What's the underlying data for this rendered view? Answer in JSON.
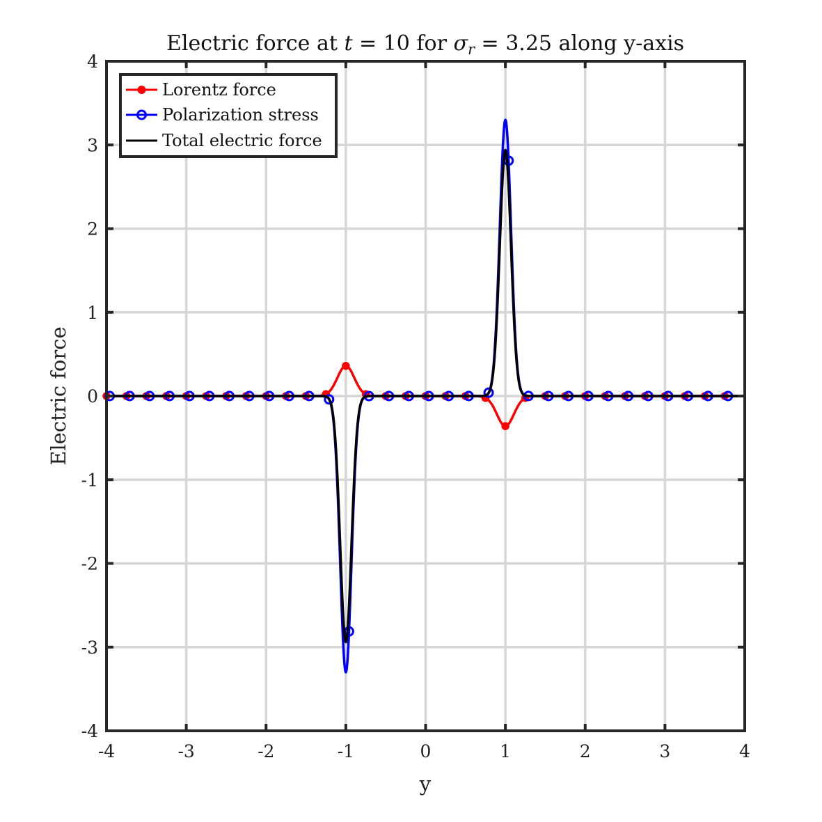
{
  "chart_data": {
    "type": "line",
    "title_parts": {
      "a": "Electric force at ",
      "t": "t",
      "eq1": " = 10 for ",
      "sigma": "σ",
      "sub": "r",
      "eq2": " = 3.25 along y-axis"
    },
    "xlabel": "y",
    "ylabel": "Electric force",
    "xlim": [
      -4,
      4
    ],
    "ylim": [
      -4,
      4
    ],
    "xticks": [
      "-4",
      "-3",
      "-2",
      "-1",
      "0",
      "1",
      "2",
      "3",
      "4"
    ],
    "yticks": [
      "-4",
      "-3",
      "-2",
      "-1",
      "0",
      "1",
      "2",
      "3",
      "4"
    ],
    "grid": true,
    "legend_position": "top-left",
    "series": [
      {
        "name": "Lorentz force",
        "color": "#ff0000",
        "marker": "filled-dot",
        "function": {
          "amp": 0.36,
          "center": 1.0,
          "width": 0.15,
          "sign": -1
        },
        "marker_x": [
          -4.0,
          -3.75,
          -3.5,
          -3.25,
          -3.0,
          -2.75,
          -2.5,
          -2.25,
          -2.0,
          -1.75,
          -1.5,
          -1.25,
          -1.0,
          -0.75,
          -0.5,
          -0.25,
          0.0,
          0.25,
          0.5,
          0.75,
          1.0,
          1.25,
          1.5,
          1.75,
          2.0,
          2.25,
          2.5,
          2.75,
          3.0,
          3.25,
          3.5,
          3.75
        ]
      },
      {
        "name": "Polarization stress",
        "color": "#0000ff",
        "marker": "open-circle",
        "function": {
          "amp": 3.3,
          "center": 1.0,
          "width": 0.1,
          "sign": 1
        },
        "marker_x": [
          -3.96,
          -3.71,
          -3.46,
          -3.21,
          -2.96,
          -2.71,
          -2.46,
          -2.21,
          -1.96,
          -1.71,
          -1.46,
          -1.21,
          -0.96,
          -0.71,
          -0.46,
          -0.21,
          0.04,
          0.29,
          0.54,
          0.79,
          1.04,
          1.29,
          1.54,
          1.79,
          2.04,
          2.29,
          2.54,
          2.79,
          3.04,
          3.29,
          3.54,
          3.79
        ]
      },
      {
        "name": "Total electric force",
        "color": "#000000",
        "marker": "none",
        "function": {
          "amp": 2.94,
          "center": 1.0,
          "width": 0.1,
          "sign": 1
        }
      }
    ]
  }
}
